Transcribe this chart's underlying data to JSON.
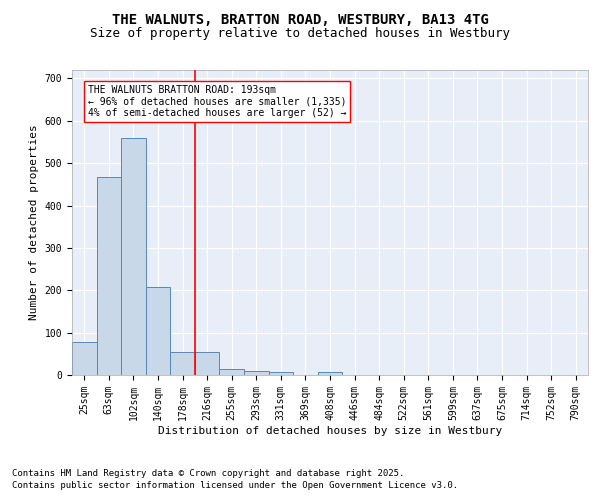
{
  "title_line1": "THE WALNUTS, BRATTON ROAD, WESTBURY, BA13 4TG",
  "title_line2": "Size of property relative to detached houses in Westbury",
  "xlabel": "Distribution of detached houses by size in Westbury",
  "ylabel": "Number of detached properties",
  "footnote_line1": "Contains HM Land Registry data © Crown copyright and database right 2025.",
  "footnote_line2": "Contains public sector information licensed under the Open Government Licence v3.0.",
  "annotation_line1": "THE WALNUTS BRATTON ROAD: 193sqm",
  "annotation_line2": "← 96% of detached houses are smaller (1,335)",
  "annotation_line3": "4% of semi-detached houses are larger (52) →",
  "bar_labels": [
    "25sqm",
    "63sqm",
    "102sqm",
    "140sqm",
    "178sqm",
    "216sqm",
    "255sqm",
    "293sqm",
    "331sqm",
    "369sqm",
    "408sqm",
    "446sqm",
    "484sqm",
    "522sqm",
    "561sqm",
    "599sqm",
    "637sqm",
    "675sqm",
    "714sqm",
    "752sqm",
    "790sqm"
  ],
  "bar_values": [
    78,
    468,
    560,
    208,
    55,
    55,
    15,
    10,
    8,
    0,
    7,
    0,
    0,
    0,
    0,
    0,
    0,
    0,
    0,
    0,
    0
  ],
  "bar_color": "#c8d8e8",
  "bar_edge_color": "#5588bb",
  "property_line_x": 4.5,
  "ylim": [
    0,
    720
  ],
  "yticks": [
    0,
    100,
    200,
    300,
    400,
    500,
    600,
    700
  ],
  "background_color": "#e8eef8",
  "grid_color": "#ffffff",
  "title_fontsize": 10,
  "subtitle_fontsize": 9,
  "axis_label_fontsize": 8,
  "tick_fontsize": 7,
  "annotation_fontsize": 7,
  "footnote_fontsize": 6.5
}
